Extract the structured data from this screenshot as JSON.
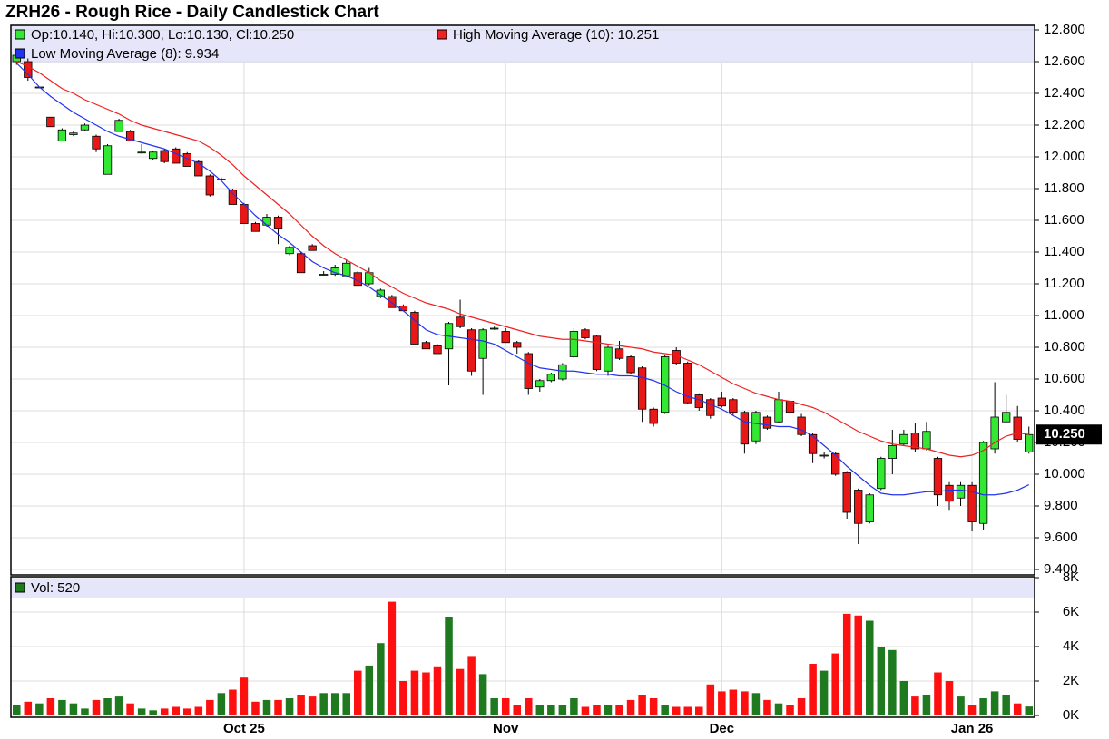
{
  "chart_data": {
    "type": "candlestick",
    "title": "ZRH26 - Rough Rice - Daily Candlestick Chart",
    "ohlc_label": "Op:10.140, Hi:10.300, Lo:10.130, Cl:10.250",
    "last_label": "10.250",
    "up_color": "#33e833",
    "down_color": "#e81818",
    "categories": [
      null,
      null,
      null,
      null,
      null,
      null,
      null,
      null,
      null,
      null,
      null,
      null,
      null,
      null,
      null,
      null,
      null,
      null,
      null,
      null,
      "Oct 25",
      null,
      null,
      null,
      null,
      null,
      null,
      null,
      null,
      null,
      null,
      null,
      null,
      null,
      null,
      null,
      null,
      null,
      null,
      null,
      null,
      null,
      null,
      "Nov",
      null,
      null,
      null,
      null,
      null,
      null,
      null,
      null,
      null,
      null,
      null,
      null,
      null,
      null,
      null,
      null,
      null,
      null,
      "Dec",
      null,
      null,
      null,
      null,
      null,
      null,
      null,
      null,
      null,
      null,
      null,
      null,
      null,
      null,
      null,
      null,
      null,
      null,
      null,
      null,
      null,
      "Jan 26",
      null,
      null,
      null,
      null,
      null
    ],
    "open": [
      12.6,
      12.6,
      12.44,
      12.25,
      12.1,
      12.14,
      12.17,
      12.13,
      11.89,
      12.16,
      12.16,
      12.03,
      11.99,
      12.04,
      12.05,
      12.02,
      11.97,
      11.88,
      11.86,
      11.79,
      11.7,
      11.58,
      11.57,
      11.62,
      11.39,
      11.39,
      11.44,
      11.26,
      11.26,
      11.25,
      11.27,
      11.2,
      11.12,
      11.12,
      11.06,
      11.02,
      10.83,
      10.81,
      10.79,
      10.99,
      10.91,
      10.73,
      10.92,
      10.9,
      10.83,
      10.76,
      10.55,
      10.59,
      10.6,
      10.74,
      10.91,
      10.87,
      10.65,
      10.79,
      10.74,
      10.67,
      10.41,
      10.39,
      10.78,
      10.7,
      10.5,
      10.47,
      10.48,
      10.47,
      10.39,
      10.21,
      10.36,
      10.33,
      10.46,
      10.36,
      10.25,
      10.12,
      10.13,
      10.01,
      9.9,
      9.7,
      9.91,
      10.1,
      10.19,
      10.26,
      10.16,
      10.1,
      9.93,
      9.85,
      9.93,
      9.69,
      10.16,
      10.33,
      10.36,
      10.14
    ],
    "high": [
      12.66,
      12.62,
      12.44,
      12.25,
      12.18,
      12.16,
      12.21,
      12.14,
      12.08,
      12.24,
      12.17,
      12.08,
      12.04,
      12.05,
      12.06,
      12.03,
      11.98,
      11.89,
      11.87,
      11.8,
      11.71,
      11.59,
      11.64,
      11.63,
      11.44,
      11.4,
      11.45,
      11.28,
      11.32,
      11.35,
      11.28,
      11.3,
      11.17,
      11.13,
      11.07,
      11.03,
      10.84,
      10.82,
      10.96,
      11.1,
      10.92,
      10.92,
      10.93,
      10.92,
      10.84,
      10.77,
      10.6,
      10.64,
      10.7,
      10.92,
      10.92,
      10.88,
      10.81,
      10.84,
      10.75,
      10.68,
      10.42,
      10.75,
      10.8,
      10.71,
      10.51,
      10.48,
      10.52,
      10.48,
      10.4,
      10.4,
      10.37,
      10.52,
      10.48,
      10.38,
      10.26,
      10.14,
      10.14,
      10.02,
      9.91,
      9.88,
      10.11,
      10.28,
      10.28,
      10.32,
      10.33,
      10.11,
      9.95,
      9.95,
      9.95,
      10.21,
      10.58,
      10.5,
      10.43,
      10.3
    ],
    "low": [
      12.58,
      12.48,
      12.44,
      12.19,
      12.1,
      12.13,
      12.16,
      12.03,
      11.89,
      12.16,
      12.1,
      12.02,
      11.98,
      11.96,
      11.96,
      11.94,
      11.88,
      11.75,
      11.86,
      11.7,
      11.58,
      11.53,
      11.56,
      11.45,
      11.38,
      11.27,
      11.41,
      11.26,
      11.25,
      11.25,
      11.19,
      11.19,
      11.11,
      11.05,
      11.03,
      10.82,
      10.79,
      10.76,
      10.56,
      10.92,
      10.62,
      10.5,
      10.91,
      10.83,
      10.76,
      10.5,
      10.52,
      10.58,
      10.59,
      10.73,
      10.85,
      10.65,
      10.62,
      10.72,
      10.63,
      10.33,
      10.3,
      10.38,
      10.69,
      10.44,
      10.4,
      10.35,
      10.42,
      10.37,
      10.13,
      10.19,
      10.28,
      10.32,
      10.38,
      10.24,
      10.07,
      10.1,
      9.99,
      9.72,
      9.56,
      9.69,
      9.9,
      10.0,
      10.18,
      10.14,
      10.15,
      9.8,
      9.77,
      9.8,
      9.64,
      9.65,
      10.13,
      10.32,
      10.2,
      10.13
    ],
    "close": [
      12.64,
      12.5,
      12.44,
      12.19,
      12.17,
      12.15,
      12.2,
      12.05,
      12.07,
      12.23,
      12.1,
      12.03,
      12.03,
      11.97,
      11.96,
      11.94,
      11.88,
      11.76,
      11.86,
      11.7,
      11.58,
      11.53,
      11.62,
      11.55,
      11.43,
      11.27,
      11.41,
      11.26,
      11.3,
      11.33,
      11.19,
      11.27,
      11.16,
      11.05,
      11.03,
      10.82,
      10.79,
      10.76,
      10.95,
      10.93,
      10.65,
      10.91,
      10.92,
      10.83,
      10.8,
      10.54,
      10.59,
      10.63,
      10.69,
      10.9,
      10.86,
      10.66,
      10.8,
      10.73,
      10.64,
      10.41,
      10.32,
      10.74,
      10.7,
      10.45,
      10.42,
      10.37,
      10.43,
      10.39,
      10.19,
      10.39,
      10.29,
      10.47,
      10.39,
      10.25,
      10.13,
      10.12,
      10.0,
      9.76,
      9.69,
      9.87,
      10.1,
      10.18,
      10.25,
      10.16,
      10.27,
      9.87,
      9.83,
      9.93,
      9.7,
      10.2,
      10.36,
      10.39,
      10.22,
      10.25
    ],
    "series": [
      {
        "name": "High Moving Average (10): 10.251",
        "color": "#ee2222",
        "values": [
          12.6,
          12.57,
          12.53,
          12.48,
          12.43,
          12.4,
          12.36,
          12.33,
          12.3,
          12.27,
          12.23,
          12.2,
          12.18,
          12.16,
          12.14,
          12.12,
          12.1,
          12.06,
          12.01,
          11.95,
          11.88,
          11.82,
          11.76,
          11.7,
          11.64,
          11.57,
          11.5,
          11.44,
          11.39,
          11.35,
          11.31,
          11.27,
          11.22,
          11.18,
          11.14,
          11.11,
          11.08,
          11.06,
          11.04,
          11.01,
          10.99,
          10.97,
          10.95,
          10.93,
          10.91,
          10.89,
          10.87,
          10.86,
          10.85,
          10.85,
          10.84,
          10.83,
          10.82,
          10.81,
          10.8,
          10.79,
          10.77,
          10.76,
          10.75,
          10.72,
          10.69,
          10.65,
          10.61,
          10.57,
          10.54,
          10.51,
          10.49,
          10.47,
          10.46,
          10.44,
          10.42,
          10.39,
          10.35,
          10.31,
          10.27,
          10.24,
          10.21,
          10.19,
          10.18,
          10.17,
          10.16,
          10.14,
          10.12,
          10.11,
          10.12,
          10.15,
          10.2,
          10.24,
          10.26,
          10.251
        ]
      },
      {
        "name": "Low Moving Average (8): 9.934",
        "color": "#2233ee",
        "values": [
          12.59,
          12.52,
          12.44,
          12.38,
          12.33,
          12.28,
          12.24,
          12.2,
          12.16,
          12.13,
          12.11,
          12.09,
          12.07,
          12.05,
          12.02,
          11.99,
          11.96,
          11.91,
          11.85,
          11.77,
          11.7,
          11.63,
          11.57,
          11.51,
          11.46,
          11.4,
          11.34,
          11.3,
          11.27,
          11.25,
          11.22,
          11.18,
          11.13,
          11.08,
          11.03,
          10.97,
          10.91,
          10.88,
          10.87,
          10.86,
          10.85,
          10.84,
          10.82,
          10.78,
          10.74,
          10.7,
          10.67,
          10.66,
          10.65,
          10.65,
          10.64,
          10.63,
          10.63,
          10.62,
          10.62,
          10.61,
          10.59,
          10.56,
          10.52,
          10.49,
          10.47,
          10.44,
          10.41,
          10.37,
          10.33,
          10.32,
          10.31,
          10.3,
          10.3,
          10.28,
          10.24,
          10.18,
          10.12,
          10.05,
          9.99,
          9.93,
          9.88,
          9.87,
          9.87,
          9.88,
          9.89,
          9.89,
          9.9,
          9.9,
          9.89,
          9.87,
          9.87,
          9.88,
          9.9,
          9.934
        ]
      }
    ],
    "ylim": [
      9.4,
      12.8
    ],
    "yticks": [
      {
        "value": 9.4,
        "label": "9.400"
      },
      {
        "value": 9.6,
        "label": "9.600"
      },
      {
        "value": 9.8,
        "label": "9.800"
      },
      {
        "value": 10,
        "label": "10.000"
      },
      {
        "value": 10.2,
        "label": "10.200"
      },
      {
        "value": 10.4,
        "label": "10.400"
      },
      {
        "value": 10.6,
        "label": "10.600"
      },
      {
        "value": 10.8,
        "label": "10.800"
      },
      {
        "value": 11,
        "label": "11.000"
      },
      {
        "value": 11.2,
        "label": "11.200"
      },
      {
        "value": 11.4,
        "label": "11.400"
      },
      {
        "value": 11.6,
        "label": "11.600"
      },
      {
        "value": 11.8,
        "label": "11.800"
      },
      {
        "value": 12,
        "label": "12.000"
      },
      {
        "value": 12.2,
        "label": "12.200"
      },
      {
        "value": 12.4,
        "label": "12.400"
      },
      {
        "value": 12.6,
        "label": "12.600"
      },
      {
        "value": 12.8,
        "label": "12.800"
      }
    ],
    "grid": true,
    "volume": {
      "label": "Vol: 520",
      "up_color": "#1f7a1f",
      "down_color": "#ff1010",
      "values": [
        600,
        800,
        700,
        1000,
        900,
        700,
        400,
        900,
        1000,
        1100,
        700,
        400,
        300,
        400,
        500,
        400,
        500,
        900,
        1300,
        1500,
        2200,
        800,
        900,
        900,
        1000,
        1200,
        1100,
        1300,
        1300,
        1300,
        2600,
        2900,
        4200,
        6600,
        2000,
        2600,
        2500,
        2800,
        5700,
        2700,
        3400,
        2400,
        1000,
        1000,
        600,
        1000,
        600,
        600,
        600,
        1000,
        500,
        600,
        600,
        600,
        900,
        1200,
        1000,
        600,
        500,
        500,
        500,
        1800,
        1400,
        1500,
        1400,
        1300,
        900,
        700,
        600,
        1000,
        3000,
        2600,
        3600,
        5900,
        5800,
        5500,
        4000,
        3800,
        2000,
        1100,
        1200,
        2500,
        2000,
        1100,
        600,
        1000,
        1400,
        1200,
        700,
        520
      ],
      "ylim": [
        0,
        8000
      ],
      "yticks": [
        {
          "value": 0,
          "label": "0K"
        },
        {
          "value": 2000,
          "label": "2K"
        },
        {
          "value": 4000,
          "label": "4K"
        },
        {
          "value": 6000,
          "label": "6K"
        },
        {
          "value": 8000,
          "label": "8K"
        }
      ]
    }
  }
}
